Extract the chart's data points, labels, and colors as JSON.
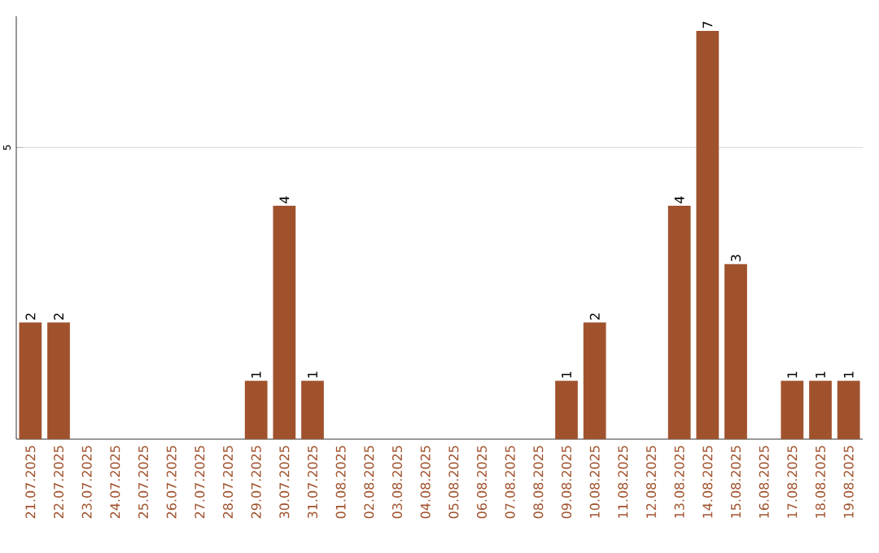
{
  "chart_data": {
    "type": "bar",
    "categories": [
      "21.07.2025",
      "22.07.2025",
      "23.07.2025",
      "24.07.2025",
      "25.07.2025",
      "26.07.2025",
      "27.07.2025",
      "28.07.2025",
      "29.07.2025",
      "30.07.2025",
      "31.07.2025",
      "01.08.2025",
      "02.08.2025",
      "03.08.2025",
      "04.08.2025",
      "05.08.2025",
      "06.08.2025",
      "07.08.2025",
      "08.08.2025",
      "09.08.2025",
      "10.08.2025",
      "11.08.2025",
      "12.08.2025",
      "13.08.2025",
      "14.08.2025",
      "15.08.2025",
      "16.08.2025",
      "17.08.2025",
      "18.08.2025",
      "19.08.2025"
    ],
    "values": [
      2,
      2,
      0,
      0,
      0,
      0,
      0,
      0,
      1,
      4,
      1,
      0,
      0,
      0,
      0,
      0,
      0,
      0,
      0,
      1,
      2,
      0,
      0,
      4,
      7,
      3,
      0,
      1,
      1,
      1
    ],
    "value_labels": [
      "2",
      "2",
      null,
      null,
      null,
      null,
      null,
      null,
      "1",
      "4",
      "1",
      null,
      null,
      null,
      null,
      null,
      null,
      null,
      null,
      "1",
      "2",
      null,
      null,
      "4",
      "7",
      "3",
      null,
      "1",
      "1",
      "1"
    ],
    "color": "#a0522d",
    "ylim": [
      0,
      7.25
    ],
    "yticks": [
      5
    ],
    "grid": "y"
  }
}
